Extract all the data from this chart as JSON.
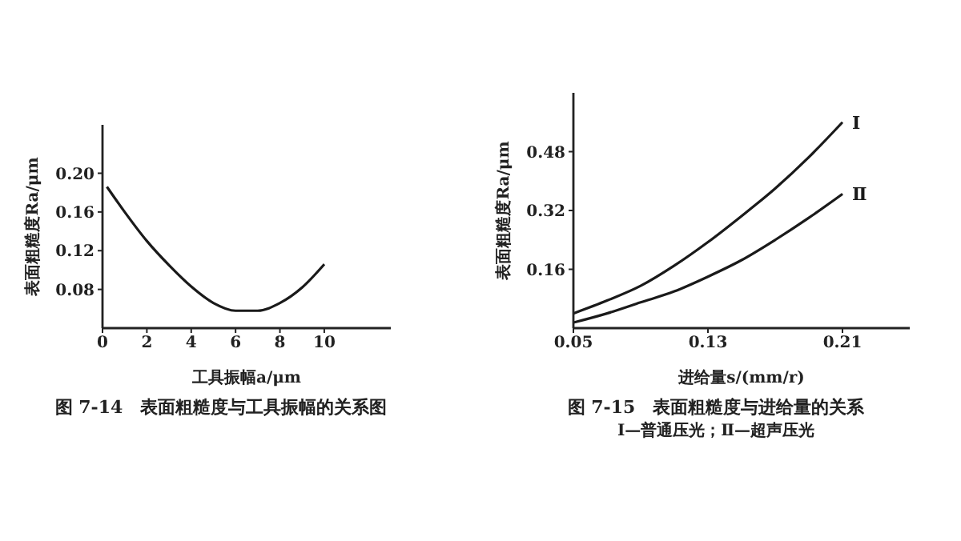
{
  "chart_data": [
    {
      "type": "line",
      "title": "图 7-14　表面粗糙度与工具振幅的关系图",
      "xlabel": "工具振幅a/μm",
      "ylabel": "表面粗糙度Ra/μm",
      "x": [
        0.2,
        1,
        2,
        3,
        4,
        5,
        6,
        7,
        8,
        9,
        10
      ],
      "series": [
        {
          "color": "#1a1a1a",
          "values": [
            0.186,
            0.16,
            0.13,
            0.105,
            0.083,
            0.066,
            0.058,
            0.058,
            0.066,
            0.082,
            0.106
          ]
        }
      ],
      "xlim": [
        0,
        13
      ],
      "ylim": [
        0.04,
        0.25
      ],
      "xticks": [
        0,
        2,
        4,
        6,
        8,
        10
      ],
      "yticks": [
        0.08,
        0.12,
        0.16,
        {
          "value": 0.2,
          "label": "0.20"
        }
      ]
    },
    {
      "type": "line",
      "title": "图 7-15　表面粗糙度与进给量的关系",
      "xlabel": "进给量s/(mm/r)",
      "ylabel": "表面粗糙度Ra/μm",
      "annotations": [
        "Ⅰ—普通压光；Ⅱ—超声压光"
      ],
      "x": [
        0.05,
        0.07,
        0.09,
        0.11,
        0.13,
        0.15,
        0.17,
        0.19,
        0.21
      ],
      "series": [
        {
          "name": "Ⅰ",
          "color": "#1a1a1a",
          "values": [
            0.04,
            0.075,
            0.115,
            0.17,
            0.234,
            0.305,
            0.38,
            0.465,
            0.56
          ]
        },
        {
          "name": "Ⅱ",
          "color": "#1a1a1a",
          "values": [
            0.015,
            0.04,
            0.07,
            0.1,
            0.14,
            0.185,
            0.24,
            0.3,
            0.365
          ]
        }
      ],
      "xlim": [
        0.05,
        0.25
      ],
      "ylim": [
        0,
        0.64
      ],
      "xticks": [
        0.05,
        0.13,
        0.21
      ],
      "yticks": [
        0.16,
        0.32,
        0.48
      ]
    }
  ]
}
